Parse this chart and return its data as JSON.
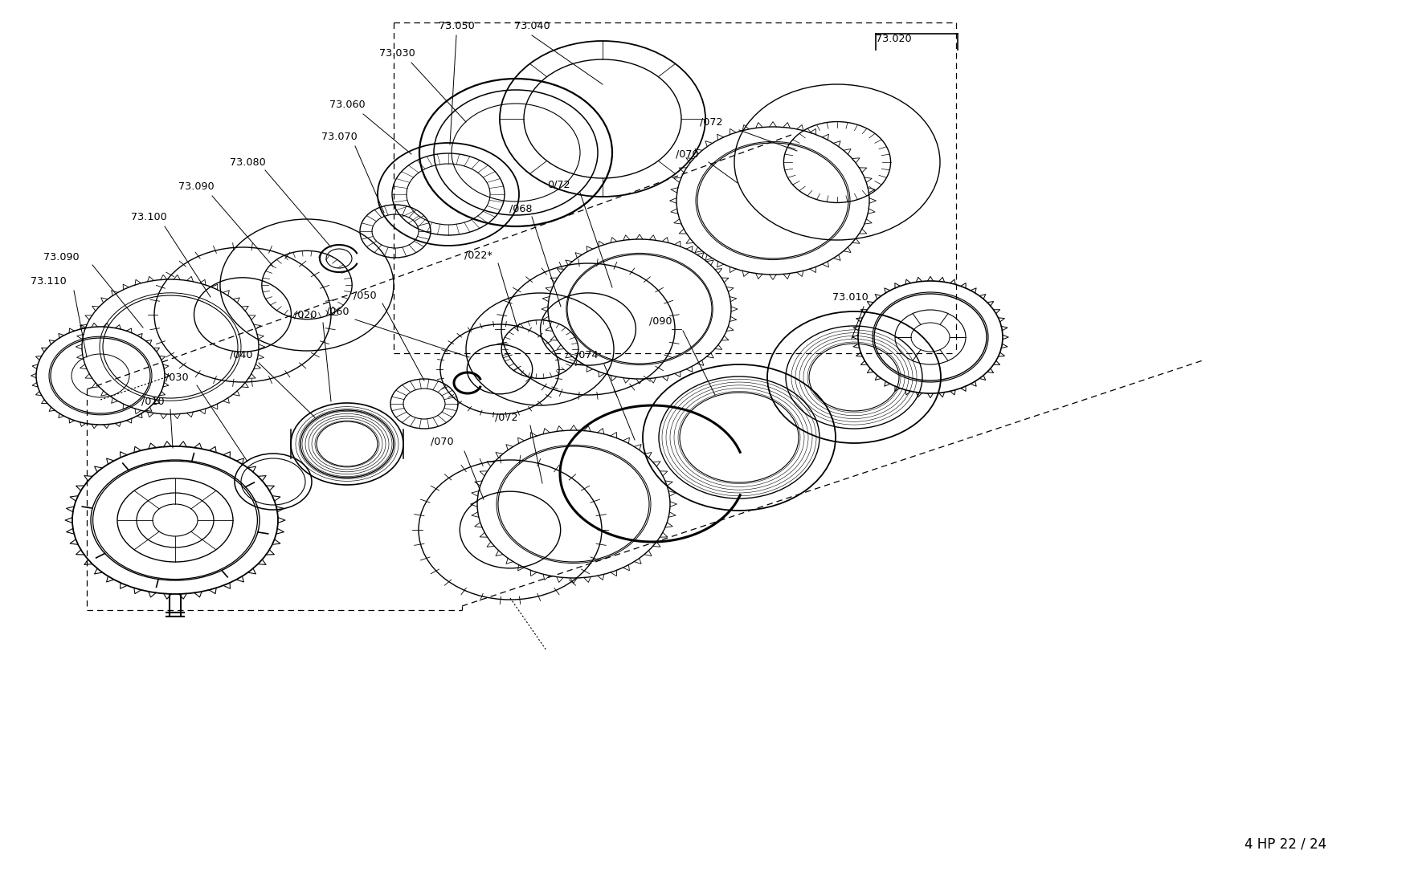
{
  "title": "",
  "footer_text": "4 HP 22 / 24",
  "background_color": "#ffffff",
  "line_color": "#000000",
  "figsize": [
    17.5,
    10.9
  ],
  "dpi": 100
}
